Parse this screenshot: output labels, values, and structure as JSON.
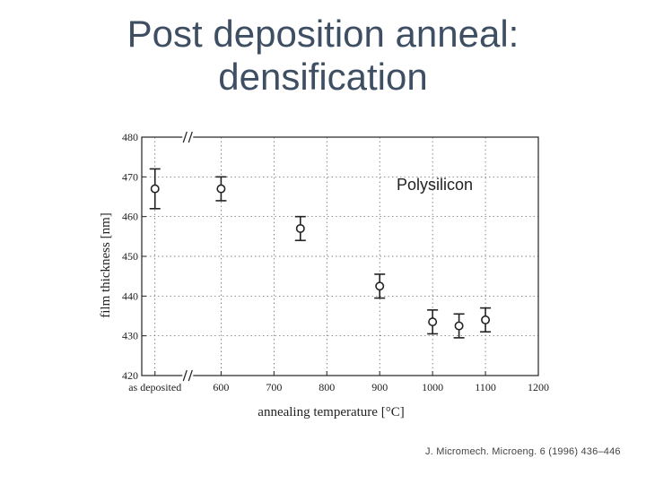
{
  "slide": {
    "title_line1": "Post deposition anneal:",
    "title_line2": "densification",
    "citation": "J. Micromech. Microeng. 6 (1996) 436–446"
  },
  "chart_data": {
    "type": "scatter",
    "xlabel": "annealing temperature [°C]",
    "ylabel": "film thickness [nm]",
    "xlim": [
      450,
      1200
    ],
    "ylim": [
      420,
      480
    ],
    "x_ticks": [
      {
        "value": 475,
        "label": "as deposited"
      },
      {
        "value": 600,
        "label": "600"
      },
      {
        "value": 700,
        "label": "700"
      },
      {
        "value": 800,
        "label": "800"
      },
      {
        "value": 900,
        "label": "900"
      },
      {
        "value": 1000,
        "label": "1000"
      },
      {
        "value": 1100,
        "label": "1100"
      },
      {
        "value": 1200,
        "label": "1200"
      }
    ],
    "y_ticks": [
      420,
      430,
      440,
      450,
      460,
      470,
      480
    ],
    "grid": true,
    "axis_break": true,
    "annotation": "Polysilicon",
    "series": [
      {
        "points": [
          {
            "x": 475,
            "y": 467,
            "err": 5
          },
          {
            "x": 600,
            "y": 467,
            "err": 3
          },
          {
            "x": 750,
            "y": 457,
            "err": 3
          },
          {
            "x": 900,
            "y": 442.5,
            "err": 3
          },
          {
            "x": 1000,
            "y": 433.5,
            "err": 3
          },
          {
            "x": 1050,
            "y": 432.5,
            "err": 3
          },
          {
            "x": 1100,
            "y": 434,
            "err": 3
          }
        ]
      }
    ]
  }
}
